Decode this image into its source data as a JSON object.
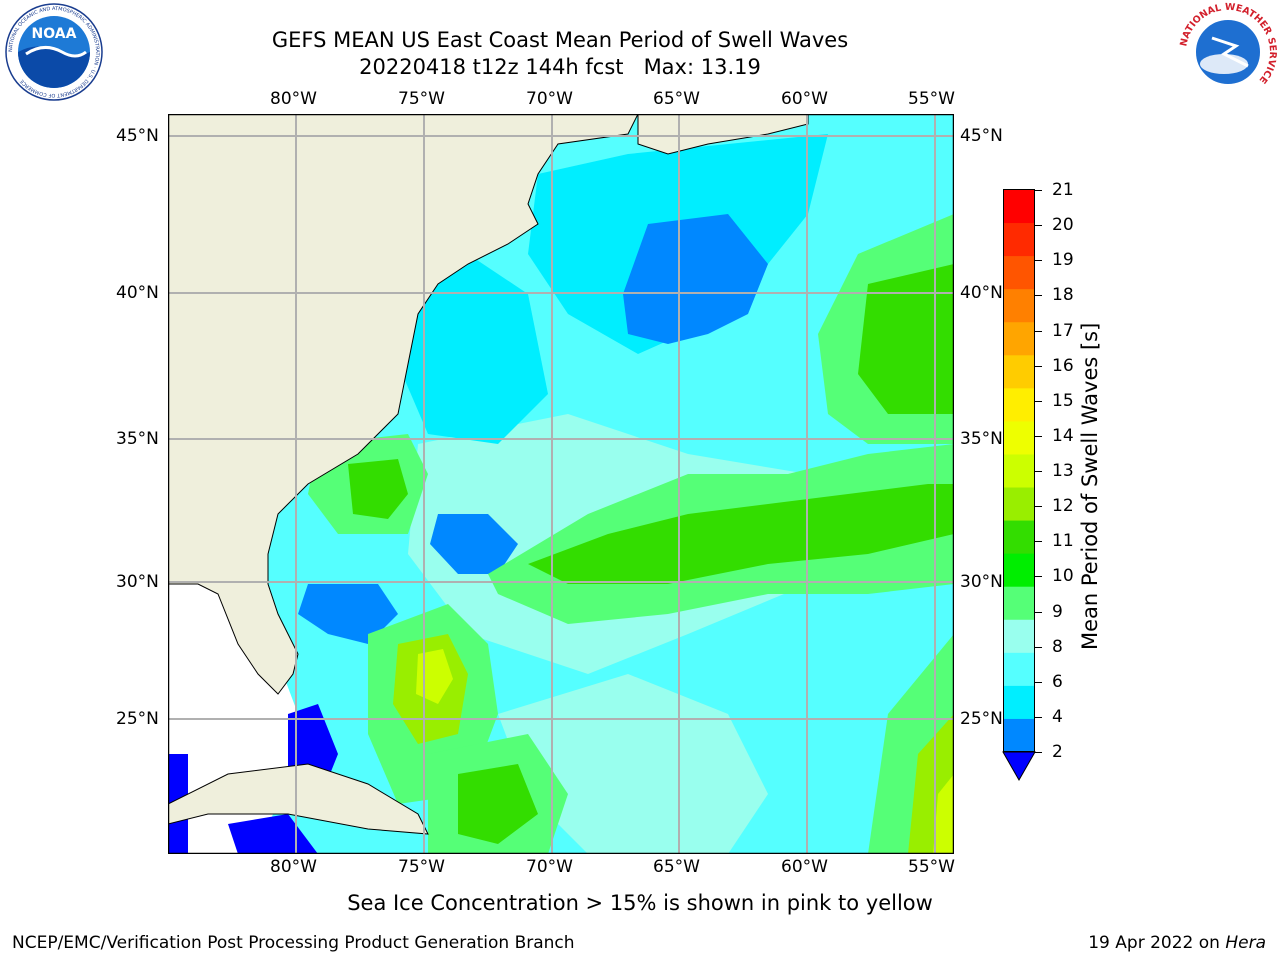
{
  "header": {
    "title_line1": "GEFS MEAN US East Coast Mean Period of Swell Waves",
    "title_line2": "20220418 t12z 144h fcst",
    "max_label": "Max: 13.19"
  },
  "logos": {
    "left": {
      "name": "noaa-logo",
      "text": "NOAA",
      "ring_text": "NATIONAL OCEANIC AND ATMOSPHERIC ADMINISTRATION · U.S. DEPARTMENT OF COMMERCE"
    },
    "right": {
      "name": "nws-logo",
      "ring_text": "NATIONAL WEATHER SERVICE"
    }
  },
  "map": {
    "lon_ticks": [
      "80°W",
      "75°W",
      "70°W",
      "65°W",
      "60°W",
      "55°W"
    ],
    "lat_ticks": [
      "45°N",
      "40°N",
      "35°N",
      "30°N",
      "25°N"
    ],
    "lon_range": [
      -85,
      -54.5
    ],
    "lat_range": [
      20,
      46
    ]
  },
  "colorbar": {
    "label": "Mean Period of Swell Waves [s]",
    "ticks": [
      "21",
      "20",
      "19",
      "18",
      "17",
      "16",
      "15",
      "14",
      "13",
      "12",
      "11",
      "10",
      "9",
      "8",
      "6",
      "4",
      "2"
    ],
    "colors": [
      "#ff0000",
      "#ff2a00",
      "#ff5500",
      "#ff8000",
      "#ffa500",
      "#ffcc00",
      "#ffee00",
      "#eeff00",
      "#ccff00",
      "#99ee00",
      "#33dd00",
      "#00ee00",
      "#55ff77",
      "#99ffee",
      "#55ffff",
      "#00eeff",
      "#0088ff"
    ],
    "under_color": "#0000ff"
  },
  "footer": {
    "note": "Sea Ice Concentration > 15% is shown in pink to yellow",
    "left": "NCEP/EMC/Verification Post Processing Product Generation Branch",
    "date": "19 Apr 2022 on",
    "machine": "Hera"
  }
}
